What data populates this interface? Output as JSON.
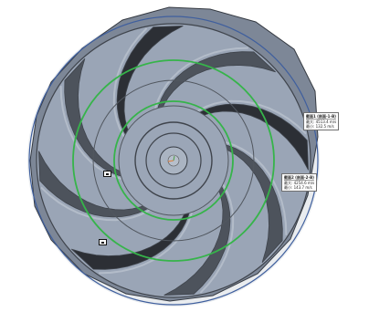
{
  "scene": {
    "colors": {
      "background": "#ffffff",
      "impeller_face": "#9aa5b6",
      "vane_shadow": "#2c2f35",
      "vane_highlight": "#b3bcc9",
      "edge_line": "#3f444c",
      "blue_circle": "#3f5f9e",
      "green_circle": "#36b44a",
      "hub_core": "#aab4c2"
    },
    "vane_count": 8
  },
  "callouts": [
    {
      "title": "截面1 (剖面-1-B)",
      "lines": [
        "最大: 4513.4 m/s",
        "最小: 132.5 m/s"
      ]
    },
    {
      "title": "截面2 (剖面-2-B)",
      "lines": [
        "最大: 4254.6 m/s",
        "最小: 143.7 m/s"
      ]
    }
  ]
}
